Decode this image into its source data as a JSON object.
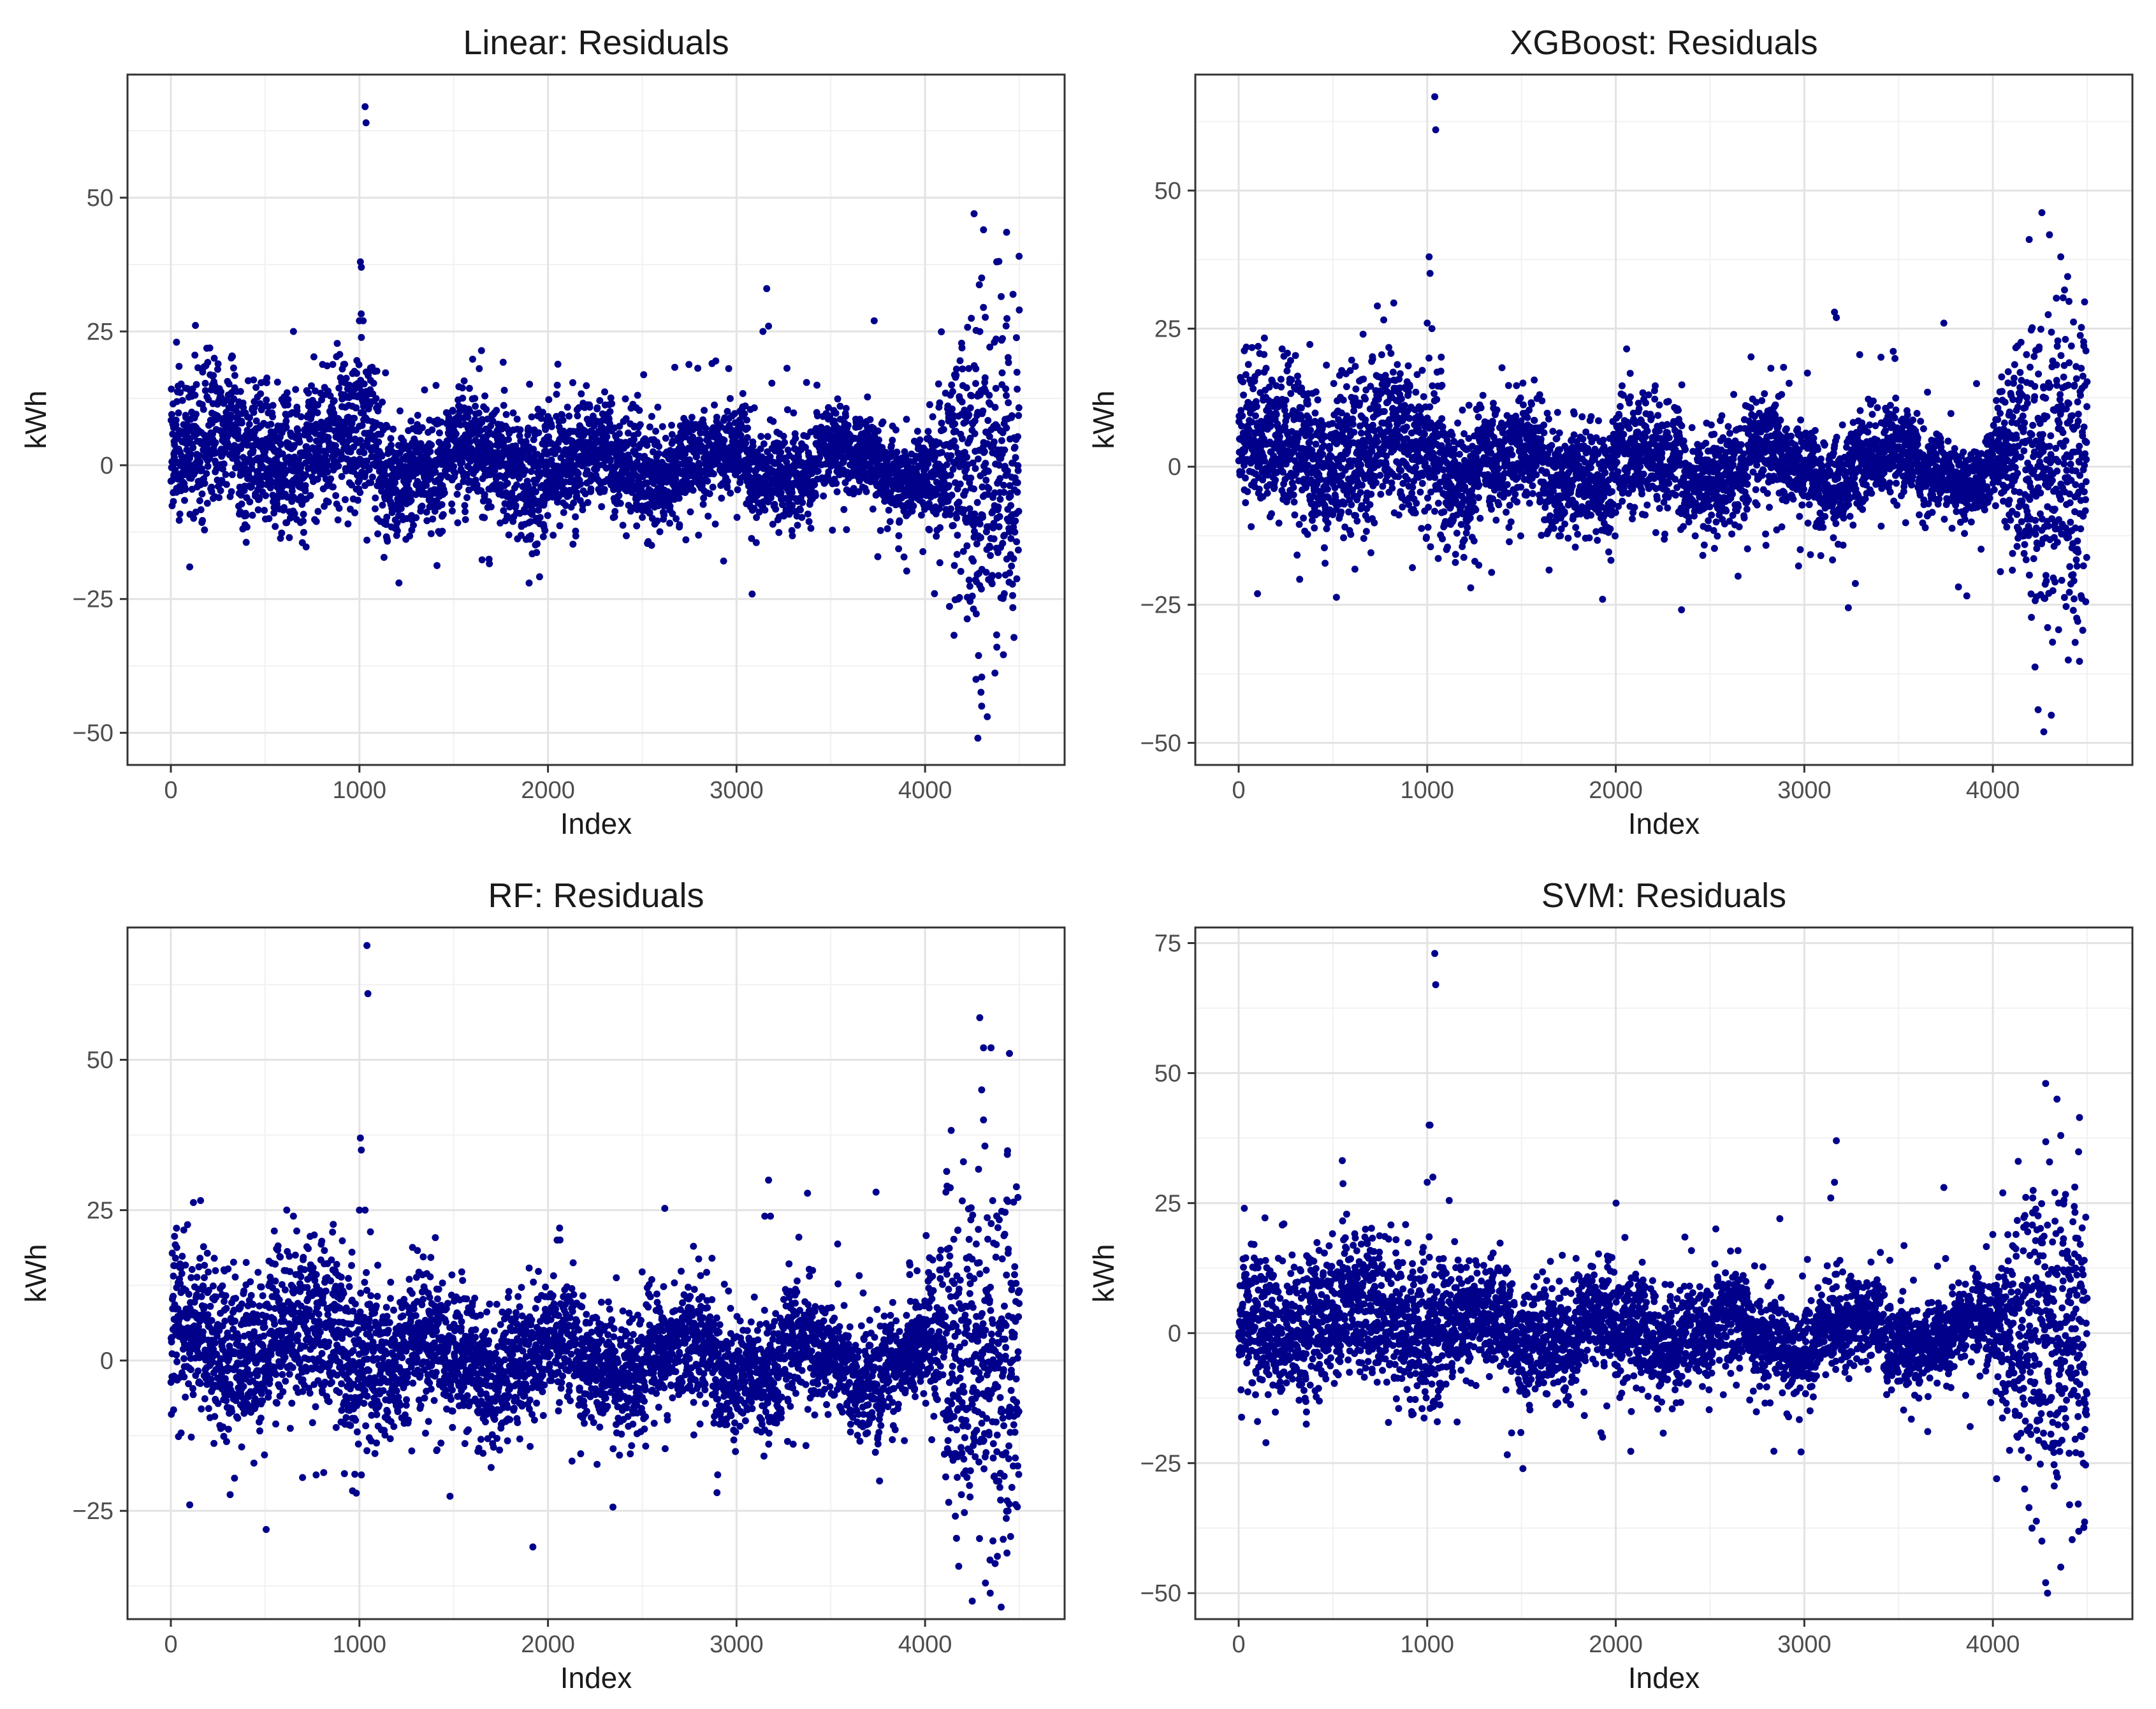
{
  "colors": {
    "point": "#00008B",
    "panel_border": "#333333",
    "grid_major": "#e3e3e3",
    "grid_minor": "#f1f1f1"
  },
  "chart_data": [
    {
      "type": "scatter",
      "title": "Linear: Residuals",
      "xlabel": "Index",
      "ylabel": "kWh",
      "xlim": [
        -230,
        4740
      ],
      "ylim": [
        -56,
        73
      ],
      "xticks": [
        0,
        1000,
        2000,
        3000,
        4000
      ],
      "yticks": [
        -50,
        -25,
        0,
        25,
        50
      ],
      "tick_labels_x": [
        "0",
        "1000",
        "2000",
        "3000",
        "4000"
      ],
      "tick_labels_y": [
        "−50",
        "−25",
        "0",
        "25",
        "50"
      ],
      "n_points": 4500,
      "spread_profile": [
        [
          0,
          4.5
        ],
        [
          1000,
          5.5
        ],
        [
          2000,
          5
        ],
        [
          3000,
          4
        ],
        [
          4000,
          3.5
        ],
        [
          4150,
          12
        ],
        [
          4500,
          16
        ]
      ],
      "outliers": [
        [
          1030,
          67
        ],
        [
          1035,
          64
        ],
        [
          1005,
          38
        ],
        [
          1010,
          37
        ],
        [
          1000,
          27
        ],
        [
          1020,
          27
        ],
        [
          4260,
          47
        ],
        [
          4310,
          44
        ],
        [
          4380,
          38
        ],
        [
          4300,
          35
        ],
        [
          3160,
          33
        ],
        [
          3170,
          26
        ],
        [
          3140,
          25
        ],
        [
          2870,
          19
        ],
        [
          2890,
          19.5
        ],
        [
          3730,
          27
        ],
        [
          4050,
          -24
        ],
        [
          4270,
          -40
        ],
        [
          4300,
          -45
        ],
        [
          4330,
          -47
        ],
        [
          4280,
          -51
        ],
        [
          4420,
          -24
        ],
        [
          1900,
          -22
        ],
        [
          100,
          -19
        ],
        [
          30,
          23
        ],
        [
          230,
          20
        ],
        [
          650,
          25
        ],
        [
          1040,
          -14
        ]
      ]
    },
    {
      "type": "scatter",
      "title": "XGBoost: Residuals",
      "xlabel": "Index",
      "ylabel": "kWh",
      "xlim": [
        -230,
        4740
      ],
      "ylim": [
        -54,
        71
      ],
      "xticks": [
        0,
        1000,
        2000,
        3000,
        4000
      ],
      "yticks": [
        -50,
        -25,
        0,
        25,
        50
      ],
      "tick_labels_x": [
        "0",
        "1000",
        "2000",
        "3000",
        "4000"
      ],
      "tick_labels_y": [
        "−50",
        "−25",
        "0",
        "25",
        "50"
      ],
      "n_points": 4500,
      "spread_profile": [
        [
          0,
          4.5
        ],
        [
          1000,
          5.5
        ],
        [
          2000,
          5
        ],
        [
          3000,
          4
        ],
        [
          4000,
          3.5
        ],
        [
          4150,
          11
        ],
        [
          4500,
          15
        ]
      ],
      "outliers": [
        [
          1040,
          67
        ],
        [
          1045,
          61
        ],
        [
          1010,
          38
        ],
        [
          1015,
          35
        ],
        [
          1000,
          26
        ],
        [
          1025,
          25
        ],
        [
          4260,
          46
        ],
        [
          4300,
          42
        ],
        [
          4360,
          38
        ],
        [
          4380,
          32
        ],
        [
          3160,
          28
        ],
        [
          3170,
          27
        ],
        [
          2890,
          18
        ],
        [
          3740,
          26
        ],
        [
          30,
          21
        ],
        [
          240,
          20
        ],
        [
          660,
          24
        ],
        [
          310,
          -16
        ],
        [
          100,
          -23
        ],
        [
          1930,
          -24
        ],
        [
          4040,
          -19
        ],
        [
          4240,
          -44
        ],
        [
          4270,
          -48
        ],
        [
          4310,
          -45
        ],
        [
          4400,
          -35
        ],
        [
          4450,
          -28
        ]
      ]
    },
    {
      "type": "scatter",
      "title": "RF: Residuals",
      "xlabel": "Index",
      "ylabel": "kWh",
      "xlim": [
        -230,
        4740
      ],
      "ylim": [
        -43,
        72
      ],
      "xticks": [
        0,
        1000,
        2000,
        3000,
        4000
      ],
      "yticks": [
        -25,
        0,
        25,
        50
      ],
      "tick_labels_x": [
        "0",
        "1000",
        "2000",
        "3000",
        "4000"
      ],
      "tick_labels_y": [
        "−25",
        "0",
        "25",
        "50"
      ],
      "n_points": 4500,
      "spread_profile": [
        [
          0,
          5
        ],
        [
          1000,
          5.5
        ],
        [
          2000,
          5
        ],
        [
          3000,
          4.5
        ],
        [
          4000,
          4
        ],
        [
          4150,
          12
        ],
        [
          4500,
          15
        ]
      ],
      "outliers": [
        [
          1040,
          69
        ],
        [
          1045,
          61
        ],
        [
          1005,
          37
        ],
        [
          1010,
          35
        ],
        [
          1000,
          25
        ],
        [
          1030,
          25
        ],
        [
          4290,
          57
        ],
        [
          4310,
          52
        ],
        [
          4350,
          52
        ],
        [
          4300,
          45
        ],
        [
          4310,
          40
        ],
        [
          3170,
          30
        ],
        [
          3150,
          24
        ],
        [
          3180,
          24
        ],
        [
          3740,
          28
        ],
        [
          2870,
          17
        ],
        [
          30,
          22
        ],
        [
          230,
          17
        ],
        [
          650,
          24
        ],
        [
          1040,
          -15
        ],
        [
          100,
          -24
        ],
        [
          1920,
          -31
        ],
        [
          2900,
          -19
        ],
        [
          4250,
          -40
        ],
        [
          4320,
          -37
        ],
        [
          4360,
          -30
        ],
        [
          4440,
          -25
        ]
      ]
    },
    {
      "type": "scatter",
      "title": "SVM: Residuals",
      "xlabel": "Index",
      "ylabel": "kWh",
      "xlim": [
        -230,
        4740
      ],
      "ylim": [
        -55,
        78
      ],
      "xticks": [
        0,
        1000,
        2000,
        3000,
        4000
      ],
      "yticks": [
        -50,
        -25,
        0,
        25,
        50,
        75
      ],
      "tick_labels_x": [
        "0",
        "1000",
        "2000",
        "3000",
        "4000"
      ],
      "tick_labels_y": [
        "−50",
        "−25",
        "0",
        "25",
        "50",
        "75"
      ],
      "n_points": 4500,
      "spread_profile": [
        [
          0,
          5
        ],
        [
          1000,
          6
        ],
        [
          2000,
          5
        ],
        [
          3000,
          4
        ],
        [
          4000,
          3.5
        ],
        [
          4150,
          13
        ],
        [
          4500,
          16
        ]
      ],
      "outliers": [
        [
          1040,
          73
        ],
        [
          1045,
          67
        ],
        [
          1010,
          40
        ],
        [
          1015,
          40
        ],
        [
          1000,
          29
        ],
        [
          1030,
          30
        ],
        [
          4280,
          48
        ],
        [
          4340,
          45
        ],
        [
          4360,
          38
        ],
        [
          3170,
          37
        ],
        [
          3160,
          29
        ],
        [
          3140,
          26
        ],
        [
          2870,
          22
        ],
        [
          3740,
          28
        ],
        [
          30,
          24
        ],
        [
          240,
          21
        ],
        [
          4020,
          -28
        ],
        [
          4260,
          -40
        ],
        [
          4280,
          -48
        ],
        [
          4290,
          -50
        ],
        [
          4360,
          -45
        ],
        [
          4440,
          -23
        ],
        [
          1930,
          -20
        ],
        [
          100,
          -17
        ]
      ]
    }
  ]
}
